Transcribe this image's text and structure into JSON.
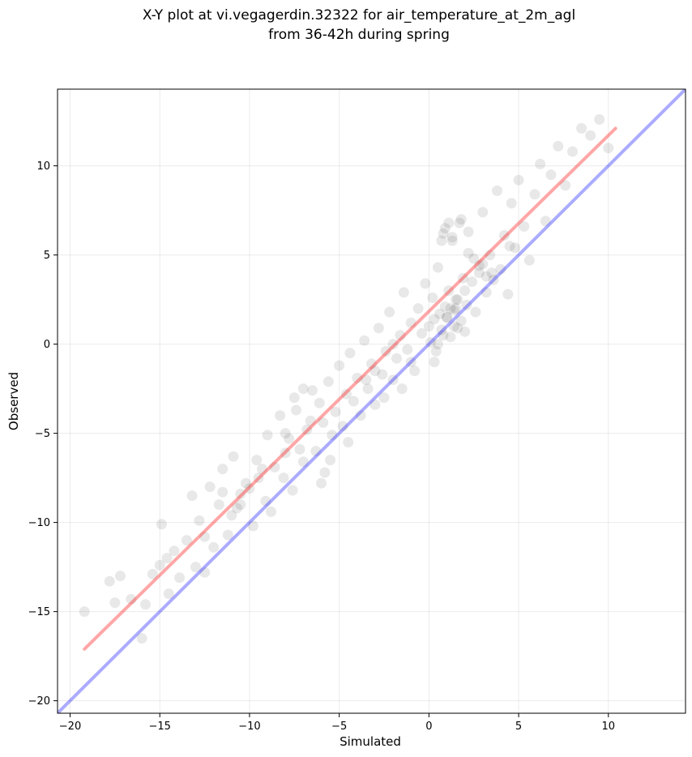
{
  "chart_data": {
    "type": "scatter",
    "title": "X-Y plot at vi.vegagerdin.32322 for air_temperature_at_2m_agl",
    "subtitle": "from 36-42h during spring",
    "xlabel": "Simulated",
    "ylabel": "Observed",
    "xlim": [
      -20.7,
      14.3
    ],
    "ylim": [
      -20.7,
      14.3
    ],
    "x_ticks": [
      -20,
      -15,
      -10,
      -5,
      0,
      5,
      10
    ],
    "y_ticks": [
      -20,
      -15,
      -10,
      -5,
      0,
      5,
      10
    ],
    "x_tick_labels": [
      "−20",
      "−15",
      "−10",
      "−5",
      "0",
      "5",
      "10"
    ],
    "y_tick_labels": [
      "−20",
      "−15",
      "−10",
      "−5",
      "0",
      "5",
      "10"
    ],
    "grid": true,
    "marker_color": "#000000",
    "marker_alpha": 0.09,
    "series": [
      {
        "type": "scatter",
        "x": [
          -19.2,
          -17.8,
          -17.5,
          -17.2,
          -16.6,
          -15.8,
          -15.4,
          -15.0,
          -14.9,
          -14.6,
          -14.2,
          -13.9,
          -13.5,
          -13.2,
          -12.8,
          -12.5,
          -12.2,
          -12.0,
          -11.7,
          -11.5,
          -11.2,
          -11.0,
          -10.9,
          -10.7,
          -10.5,
          -10.2,
          -10.0,
          -9.8,
          -9.6,
          -9.3,
          -9.1,
          -9.0,
          -8.8,
          -8.6,
          -8.3,
          -8.1,
          -8.0,
          -7.8,
          -7.6,
          -7.4,
          -7.2,
          -7.0,
          -6.8,
          -6.6,
          -6.5,
          -6.3,
          -6.1,
          -5.9,
          -5.8,
          -5.6,
          -5.4,
          -5.2,
          -5.0,
          -4.8,
          -4.6,
          -4.4,
          -4.2,
          -4.0,
          -3.8,
          -3.6,
          -3.4,
          -3.2,
          -3.0,
          -2.8,
          -2.6,
          -2.4,
          -2.2,
          -2.0,
          -1.8,
          -1.6,
          -1.4,
          -1.2,
          -1.0,
          -0.8,
          -0.6,
          -0.4,
          -0.2,
          0.0,
          0.1,
          0.2,
          0.3,
          0.4,
          0.5,
          0.6,
          0.7,
          0.8,
          0.9,
          1.0,
          1.1,
          1.2,
          1.3,
          1.4,
          1.5,
          1.6,
          1.7,
          1.8,
          1.9,
          2.0,
          2.1,
          2.2,
          2.4,
          2.6,
          2.8,
          3.0,
          3.2,
          3.4,
          3.6,
          3.8,
          4.0,
          4.2,
          4.4,
          4.6,
          4.8,
          5.0,
          5.3,
          5.6,
          5.9,
          6.2,
          6.5,
          6.8,
          7.2,
          7.6,
          8.0,
          8.5,
          9.0,
          9.5,
          10.0,
          1.0,
          1.2,
          1.4,
          0.8,
          1.6,
          0.9,
          1.1,
          1.3,
          0.7,
          1.5,
          2.8,
          3.0,
          3.2,
          2.5,
          -7.5,
          -7.0,
          -8.0,
          -9.5,
          -10.5,
          -3.0,
          -2.5,
          -4.5,
          -5.5,
          -6.0,
          -1.0,
          -1.5,
          0.5,
          2.0,
          3.5,
          4.5,
          -14.5,
          -13.0,
          -16.0,
          -11.5,
          -12.5,
          -2.0,
          -3.5,
          1.8,
          2.2,
          0.3
        ],
        "y": [
          -15.0,
          -13.3,
          -14.5,
          -13.0,
          -14.3,
          -14.6,
          -12.9,
          -12.4,
          -10.1,
          -12.0,
          -11.6,
          -13.1,
          -11.0,
          -8.5,
          -9.9,
          -10.8,
          -8.0,
          -11.4,
          -9.0,
          -8.3,
          -10.7,
          -9.6,
          -6.3,
          -9.2,
          -8.4,
          -7.8,
          -8.1,
          -10.2,
          -6.5,
          -7.0,
          -8.8,
          -5.1,
          -9.4,
          -6.9,
          -4.0,
          -7.5,
          -6.1,
          -5.3,
          -8.2,
          -3.7,
          -5.9,
          -6.6,
          -4.8,
          -4.3,
          -2.6,
          -6.0,
          -3.3,
          -4.4,
          -7.2,
          -2.1,
          -5.1,
          -3.8,
          -1.2,
          -4.6,
          -2.8,
          -0.5,
          -3.2,
          -1.9,
          -4.0,
          0.2,
          -2.5,
          -1.1,
          -3.4,
          0.9,
          -1.7,
          -0.4,
          1.8,
          -2.0,
          -0.8,
          0.5,
          2.9,
          -0.3,
          1.2,
          -1.5,
          2.0,
          0.6,
          3.4,
          1.0,
          0.1,
          2.6,
          1.4,
          -0.4,
          4.3,
          1.7,
          0.8,
          6.2,
          2.1,
          1.5,
          3.0,
          0.4,
          5.8,
          1.9,
          2.5,
          0.9,
          6.8,
          1.3,
          3.7,
          0.7,
          2.2,
          5.1,
          3.5,
          1.8,
          4.4,
          7.4,
          2.9,
          5.0,
          3.6,
          8.6,
          4.2,
          6.1,
          2.8,
          7.9,
          5.4,
          9.2,
          6.6,
          4.7,
          8.4,
          10.1,
          6.9,
          9.5,
          11.1,
          8.9,
          10.8,
          12.1,
          11.7,
          12.6,
          11.0,
          1.5,
          2.0,
          1.0,
          0.5,
          2.5,
          6.5,
          6.8,
          6.0,
          5.8,
          2.0,
          4.0,
          4.5,
          3.8,
          4.8,
          -3.0,
          -2.5,
          -5.0,
          -7.5,
          -9.0,
          -1.5,
          -3.0,
          -5.5,
          -6.5,
          -7.8,
          -1.0,
          -2.5,
          0.0,
          3.0,
          4.0,
          5.5,
          -14.0,
          -12.5,
          -16.5,
          -7.0,
          -12.8,
          0.0,
          -2.0,
          7.0,
          6.3,
          -1.0
        ]
      }
    ],
    "lines": [
      {
        "name": "",
        "color": "#ff0000",
        "alpha": 0.35,
        "x": [
          -19.2,
          10.4
        ],
        "y": [
          -17.1,
          12.1
        ]
      },
      {
        "name": "",
        "color": "#0000ff",
        "alpha": 0.33,
        "x": [
          -20.7,
          14.3
        ],
        "y": [
          -20.7,
          14.3
        ]
      }
    ]
  }
}
